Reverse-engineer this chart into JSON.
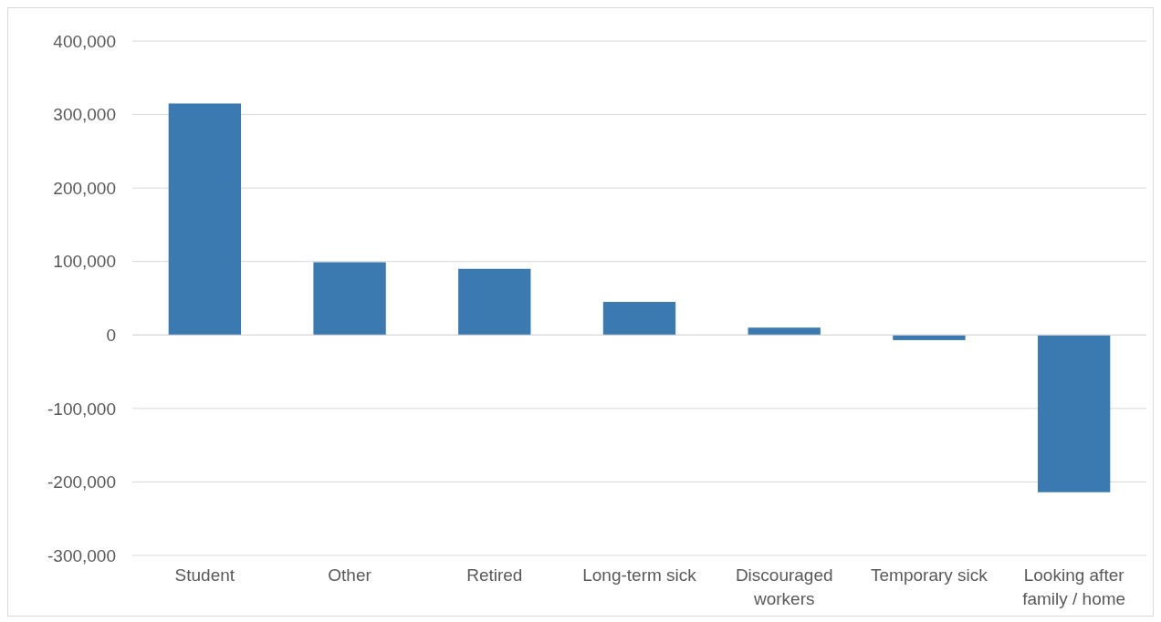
{
  "chart_data": {
    "type": "bar",
    "categories": [
      "Student",
      "Other",
      "Retired",
      "Long-term sick",
      "Discouraged workers",
      "Temporary sick",
      "Looking after family / home"
    ],
    "values": [
      315000,
      99000,
      90000,
      45000,
      10000,
      -7000,
      -214000
    ],
    "color": "#3a7ab0",
    "ylim": [
      -300000,
      400000
    ],
    "yticks": [
      {
        "value": -300000,
        "label": "-300,000"
      },
      {
        "value": -200000,
        "label": "-200,000"
      },
      {
        "value": -100000,
        "label": "-100,000"
      },
      {
        "value": 0,
        "label": "0"
      },
      {
        "value": 100000,
        "label": "100,000"
      },
      {
        "value": 200000,
        "label": "200,000"
      },
      {
        "value": 300000,
        "label": "300,000"
      },
      {
        "value": 400000,
        "label": "400,000"
      }
    ],
    "grid": "y"
  }
}
